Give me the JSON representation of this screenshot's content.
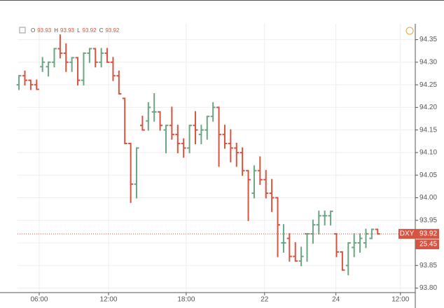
{
  "chart_data": {
    "type": "ohlc",
    "legend": {
      "open_label": "O",
      "open": 93.93,
      "high_label": "H",
      "high": 93.93,
      "low_label": "L",
      "low": 93.92,
      "close_label": "C",
      "close": 93.92
    },
    "up_color": "#6ba583",
    "down_color": "#d75442",
    "x": [
      0,
      1,
      2,
      3,
      4,
      5,
      6,
      7,
      8,
      9,
      10,
      11,
      12,
      13,
      14,
      15,
      16,
      17,
      18,
      19,
      20,
      21,
      22,
      23,
      24,
      25,
      26,
      27,
      28,
      29,
      30,
      31,
      32,
      33,
      34,
      35,
      36,
      37,
      38,
      39,
      40,
      41,
      42,
      43,
      44,
      45,
      46,
      47,
      48,
      49,
      50,
      51,
      52,
      53,
      54,
      55,
      56,
      57,
      58,
      59,
      60,
      61
    ],
    "open": [
      94.25,
      94.27,
      94.26,
      94.25,
      94.29,
      94.29,
      94.3,
      94.33,
      94.32,
      94.3,
      94.31,
      94.26,
      94.32,
      94.33,
      94.3,
      94.32,
      94.3,
      94.27,
      94.22,
      94.12,
      94.03,
      94.16,
      94.17,
      94.19,
      94.19,
      94.15,
      94.16,
      94.14,
      94.12,
      94.11,
      94.16,
      94.14,
      94.15,
      94.18,
      94.2,
      94.14,
      94.12,
      94.11,
      94.1,
      94.06,
      94.01,
      94.06,
      94.04,
      94.01,
      94.0,
      93.9,
      93.91,
      93.87,
      93.86,
      93.92,
      93.92,
      93.94,
      93.96,
      93.96,
      93.92,
      93.88,
      93.85,
      93.89,
      93.9,
      93.9,
      93.91,
      93.93
    ],
    "high": [
      94.27,
      94.28,
      94.26,
      94.26,
      94.31,
      94.3,
      94.33,
      94.36,
      94.34,
      94.31,
      94.31,
      94.32,
      94.33,
      94.33,
      94.33,
      94.33,
      94.31,
      94.28,
      94.22,
      94.12,
      94.11,
      94.18,
      94.21,
      94.23,
      94.19,
      94.16,
      94.2,
      94.16,
      94.13,
      94.16,
      94.19,
      94.16,
      94.18,
      94.21,
      94.2,
      94.16,
      94.15,
      94.12,
      94.11,
      94.06,
      94.07,
      94.09,
      94.06,
      94.04,
      94.0,
      93.94,
      93.92,
      93.9,
      93.89,
      93.92,
      93.95,
      93.97,
      93.97,
      93.97,
      93.92,
      93.88,
      93.9,
      93.92,
      93.92,
      93.93,
      93.93,
      93.93
    ],
    "low": [
      94.24,
      94.25,
      94.24,
      94.24,
      94.28,
      94.27,
      94.29,
      94.31,
      94.28,
      94.28,
      94.25,
      94.25,
      94.3,
      94.29,
      94.29,
      94.3,
      94.26,
      94.23,
      94.12,
      93.99,
      94.0,
      94.15,
      94.15,
      94.17,
      94.15,
      94.1,
      94.13,
      94.1,
      94.09,
      94.1,
      94.12,
      94.12,
      94.13,
      94.17,
      94.07,
      94.11,
      94.08,
      94.07,
      94.05,
      93.95,
      94.0,
      94.03,
      94.0,
      93.97,
      93.87,
      93.88,
      93.86,
      93.86,
      93.85,
      93.86,
      93.9,
      93.92,
      93.94,
      93.94,
      93.87,
      93.84,
      93.83,
      93.87,
      93.88,
      93.89,
      93.91,
      93.92
    ],
    "close": [
      94.27,
      94.26,
      94.25,
      94.24,
      94.3,
      94.3,
      94.33,
      94.32,
      94.3,
      94.31,
      94.26,
      94.32,
      94.33,
      94.3,
      94.32,
      94.3,
      94.27,
      94.23,
      94.12,
      94.03,
      94.11,
      94.15,
      94.2,
      94.19,
      94.16,
      94.16,
      94.14,
      94.12,
      94.11,
      94.16,
      94.15,
      94.15,
      94.18,
      94.2,
      94.14,
      94.12,
      94.11,
      94.1,
      94.06,
      94.04,
      94.06,
      94.04,
      94.01,
      94.0,
      93.94,
      93.9,
      93.87,
      93.86,
      93.87,
      93.92,
      93.94,
      93.96,
      93.96,
      93.97,
      93.88,
      93.84,
      93.9,
      93.9,
      93.91,
      93.92,
      93.93,
      93.92
    ],
    "xlim": [
      -0.25,
      67.4
    ],
    "xticks": [
      {
        "value": 3.44,
        "label": "06:00"
      },
      {
        "value": 15.23,
        "label": "12:00"
      },
      {
        "value": 28.44,
        "label": "18:00"
      },
      {
        "value": 41.77,
        "label": "22"
      },
      {
        "value": 53.9,
        "label": "24"
      },
      {
        "value": 64.87,
        "label": "12:00"
      }
    ],
    "ylim": [
      93.79,
      94.385
    ],
    "yticks": [
      {
        "value": 93.8,
        "label": "93.80"
      },
      93.85,
      {
        "value": 93.9,
        "label": "93.90"
      },
      93.95,
      {
        "value": 94.0,
        "label": "94.00"
      },
      94.05,
      {
        "value": 94.1,
        "label": "94.10"
      },
      94.15,
      {
        "value": 94.2,
        "label": "94.20"
      },
      94.25,
      {
        "value": 94.3,
        "label": "94.30"
      },
      94.35
    ],
    "grid": true,
    "last_price": {
      "symbol": "DXY",
      "value": 93.92,
      "countdown": "25.45"
    }
  }
}
